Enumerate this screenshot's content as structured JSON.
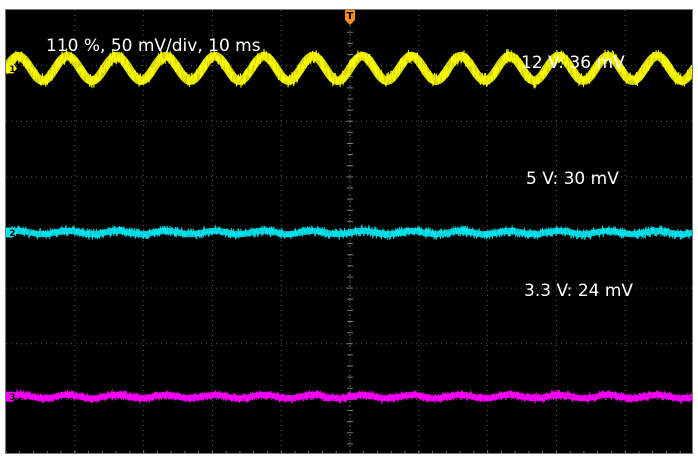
{
  "chart_data": {
    "type": "line",
    "title": "110 %, 50 mV/div, 10 ms",
    "grid": true,
    "grid_divisions": {
      "horizontal": 10,
      "vertical": 8
    },
    "trigger_marker": {
      "label": "T",
      "color": "#ff8c1a"
    },
    "series": [
      {
        "marker": "1",
        "label": "12 V: 36 mV",
        "color": "#ffff00",
        "ripple_cycles": 14,
        "ripple_amplitude_divisions": 0.22,
        "offset_divisions": 2.95,
        "noise_divisions": 0.14
      },
      {
        "marker": "2",
        "label": "5 V: 30 mV",
        "color": "#00e5f0",
        "ripple_cycles": 14,
        "ripple_amplitude_divisions": 0.03,
        "offset_divisions": 0.0,
        "noise_divisions": 0.1
      },
      {
        "marker": "3",
        "label": "3.3 V: 24 mV",
        "color": "#ff00ff",
        "ripple_cycles": 14,
        "ripple_amplitude_divisions": 0.03,
        "offset_divisions": -2.95,
        "noise_divisions": 0.09
      }
    ]
  }
}
